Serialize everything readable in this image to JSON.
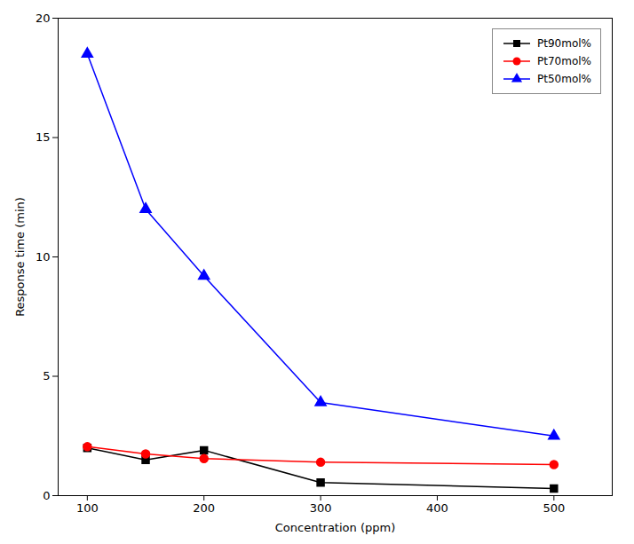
{
  "chart_data": {
    "type": "line",
    "x": [
      100,
      150,
      200,
      300,
      500
    ],
    "series": [
      {
        "name": "Pt90mol%",
        "color": "#000000",
        "marker": "square",
        "values": [
          2.0,
          1.5,
          1.9,
          0.55,
          0.3
        ]
      },
      {
        "name": "Pt70mol%",
        "color": "#ff0000",
        "marker": "circle",
        "values": [
          2.05,
          1.75,
          1.55,
          1.4,
          1.3
        ]
      },
      {
        "name": "Pt50mol%",
        "color": "#0000ff",
        "marker": "triangle",
        "values": [
          18.5,
          12.0,
          9.2,
          3.9,
          2.5
        ]
      }
    ],
    "xlabel": "Concentration (ppm)",
    "ylabel": "Response time (min)",
    "xlim": [
      75,
      550
    ],
    "ylim": [
      0,
      20
    ],
    "xticks": [
      100,
      200,
      300,
      400,
      500
    ],
    "yticks": [
      0,
      5,
      10,
      15,
      20
    ],
    "grid": false,
    "legend": "upper right"
  }
}
